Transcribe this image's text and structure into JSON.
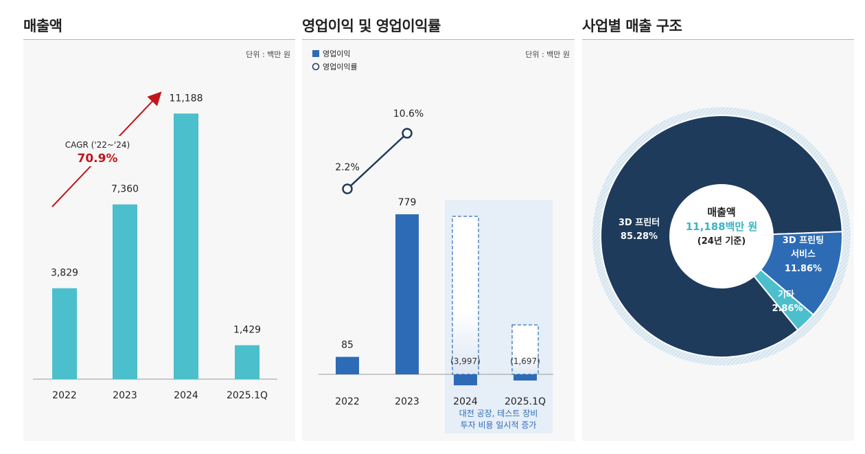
{
  "panels": [
    {
      "title": "매출액"
    },
    {
      "title": "영업이익 및 영업이익률"
    },
    {
      "title": "사업별 매출 구조"
    }
  ],
  "colors": {
    "revenue_bar": "#4bbfcc",
    "op_bar": "#2e6bb6",
    "margin_line": "#1e3a5c",
    "cagr_arrow": "#c0161c",
    "pie_3d_printer": "#1e3b5c",
    "pie_3d_service": "#2d6cb5",
    "pie_other": "#4bbfcc",
    "highlight_box": "#e6eef8"
  },
  "chart_data": [
    {
      "type": "bar",
      "title": "매출액",
      "unit_label": "단위 : 백만 원",
      "categories": [
        "2022",
        "2023",
        "2024",
        "2025.1Q"
      ],
      "values": [
        3829,
        7360,
        11188,
        1429
      ],
      "value_labels": [
        "3,829",
        "7,360",
        "11,188",
        "1,429"
      ],
      "ylim": [
        0,
        12500
      ],
      "annotation": {
        "label": "CAGR ('22~'24)",
        "value": "70.9%"
      }
    },
    {
      "type": "bar",
      "title": "영업이익 및 영업이익률",
      "unit_label": "단위 : 백만 원",
      "legend": [
        "영업이익",
        "영업이익률"
      ],
      "categories": [
        "2022",
        "2023",
        "2024",
        "2025.1Q"
      ],
      "series": [
        {
          "name": "영업이익",
          "values": [
            85,
            779,
            -3997,
            -1697
          ],
          "value_labels": [
            "85",
            "779",
            "(3,997)",
            "(1,697)"
          ]
        },
        {
          "name": "영업이익률",
          "type": "line",
          "values": [
            2.2,
            10.6,
            null,
            null
          ],
          "value_labels": [
            "2.2%",
            "10.6%"
          ]
        }
      ],
      "note_lines": [
        "대전 공장, 테스트 장비",
        "투자 비용 일시적 증가"
      ]
    },
    {
      "type": "pie",
      "title": "사업별 매출 구조",
      "center_lines": [
        "매출액",
        "11,188백만 원",
        "(24년 기준)"
      ],
      "slices": [
        {
          "name": "3D 프린터",
          "value": 85.28,
          "label": "85.28%"
        },
        {
          "name": "3D 프린팅 서비스",
          "value": 11.86,
          "label": "11.86%"
        },
        {
          "name": "기타",
          "value": 2.86,
          "label": "2.86%"
        }
      ]
    }
  ]
}
